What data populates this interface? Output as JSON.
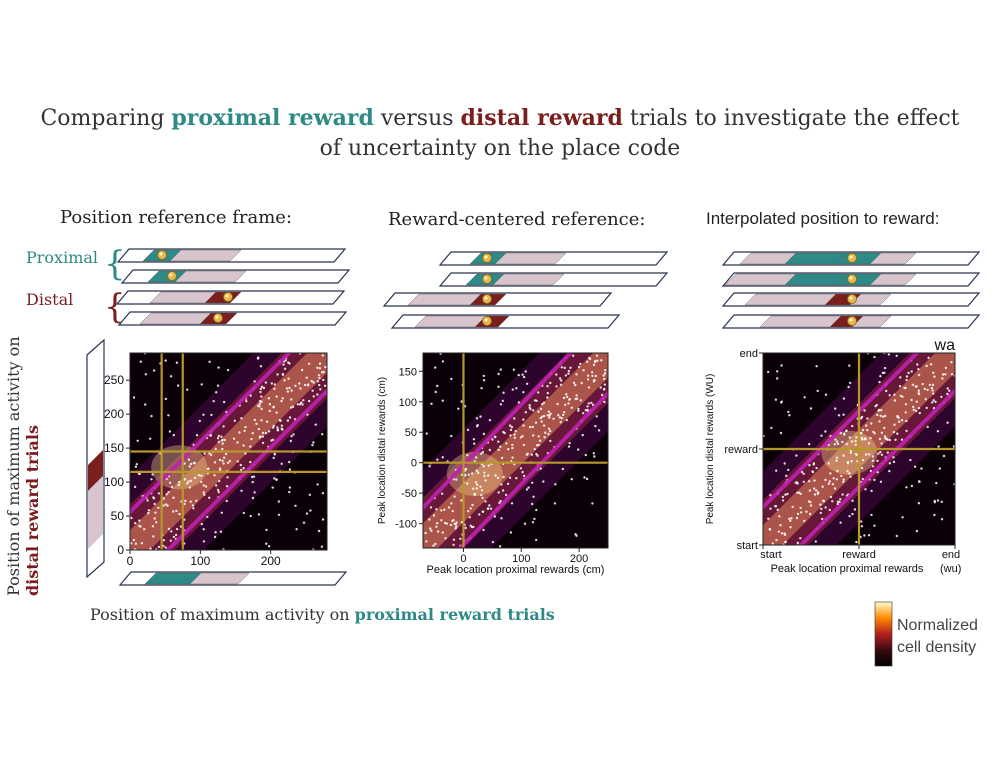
{
  "title": {
    "part1": "Comparing ",
    "proximal": "proximal reward",
    "part2": " versus ",
    "distal": "distal reward",
    "part3": " trials to investigate the effect of uncertainty on the place code"
  },
  "panels": {
    "position_frame": "Position reference frame:",
    "reward_centered": "Reward-centered reference:",
    "interpolated": "Interpolated position to reward:"
  },
  "labels": {
    "proximal": "Proximal",
    "distal": "Distal",
    "y_axis_prefix": "Position of maximum activity on",
    "y_axis_bold": "distal reward trials",
    "x_axis_prefix": "Position of maximum activity on ",
    "x_axis_bold": "proximal reward trials"
  },
  "colorbar": {
    "line1": "Normalized",
    "line2": "cell density"
  },
  "colors": {
    "teal": "#2e8a86",
    "dark_red": "#7a1e1e",
    "light_mauve": "#d8c4cc",
    "gold": "#b8972a",
    "magenta": "#c020b0"
  },
  "chart_data": [
    {
      "type": "heatmap",
      "title": "Position reference frame:",
      "xlabel": "",
      "ylabel": "",
      "xlim": [
        0,
        280
      ],
      "ylim": [
        0,
        290
      ],
      "xticks": [
        0,
        100,
        200
      ],
      "yticks": [
        0,
        50,
        100,
        150,
        200,
        250
      ],
      "reference_lines_x": [
        45,
        75
      ],
      "reference_lines_y": [
        115,
        145
      ],
      "diagonal_offsets": [
        -60,
        0,
        60
      ]
    },
    {
      "type": "heatmap",
      "title": "Reward-centered reference:",
      "xlabel": "Peak location proximal rewards (cm)",
      "ylabel": "Peak location distal rewards (cm)",
      "xlim": [
        -70,
        250
      ],
      "ylim": [
        -140,
        180
      ],
      "xticks": [
        0,
        100,
        200
      ],
      "yticks": [
        -100,
        -50,
        0,
        50,
        100,
        150
      ],
      "reference_lines_x": [
        0
      ],
      "reference_lines_y": [
        0
      ],
      "diagonal_offsets": [
        -60,
        0,
        60
      ]
    },
    {
      "type": "heatmap",
      "title": "Interpolated position to reward:",
      "xlabel": "Peak location proximal rewards",
      "xunit": "(wu)",
      "ylabel": "Peak location distal rewards (WU)",
      "corner_label": "wa",
      "xticks": [
        "start",
        "reward",
        "end"
      ],
      "yticks": [
        "start",
        "reward",
        "end"
      ],
      "reference_lines_x": [
        "reward"
      ],
      "reference_lines_y": [
        "reward"
      ]
    }
  ]
}
